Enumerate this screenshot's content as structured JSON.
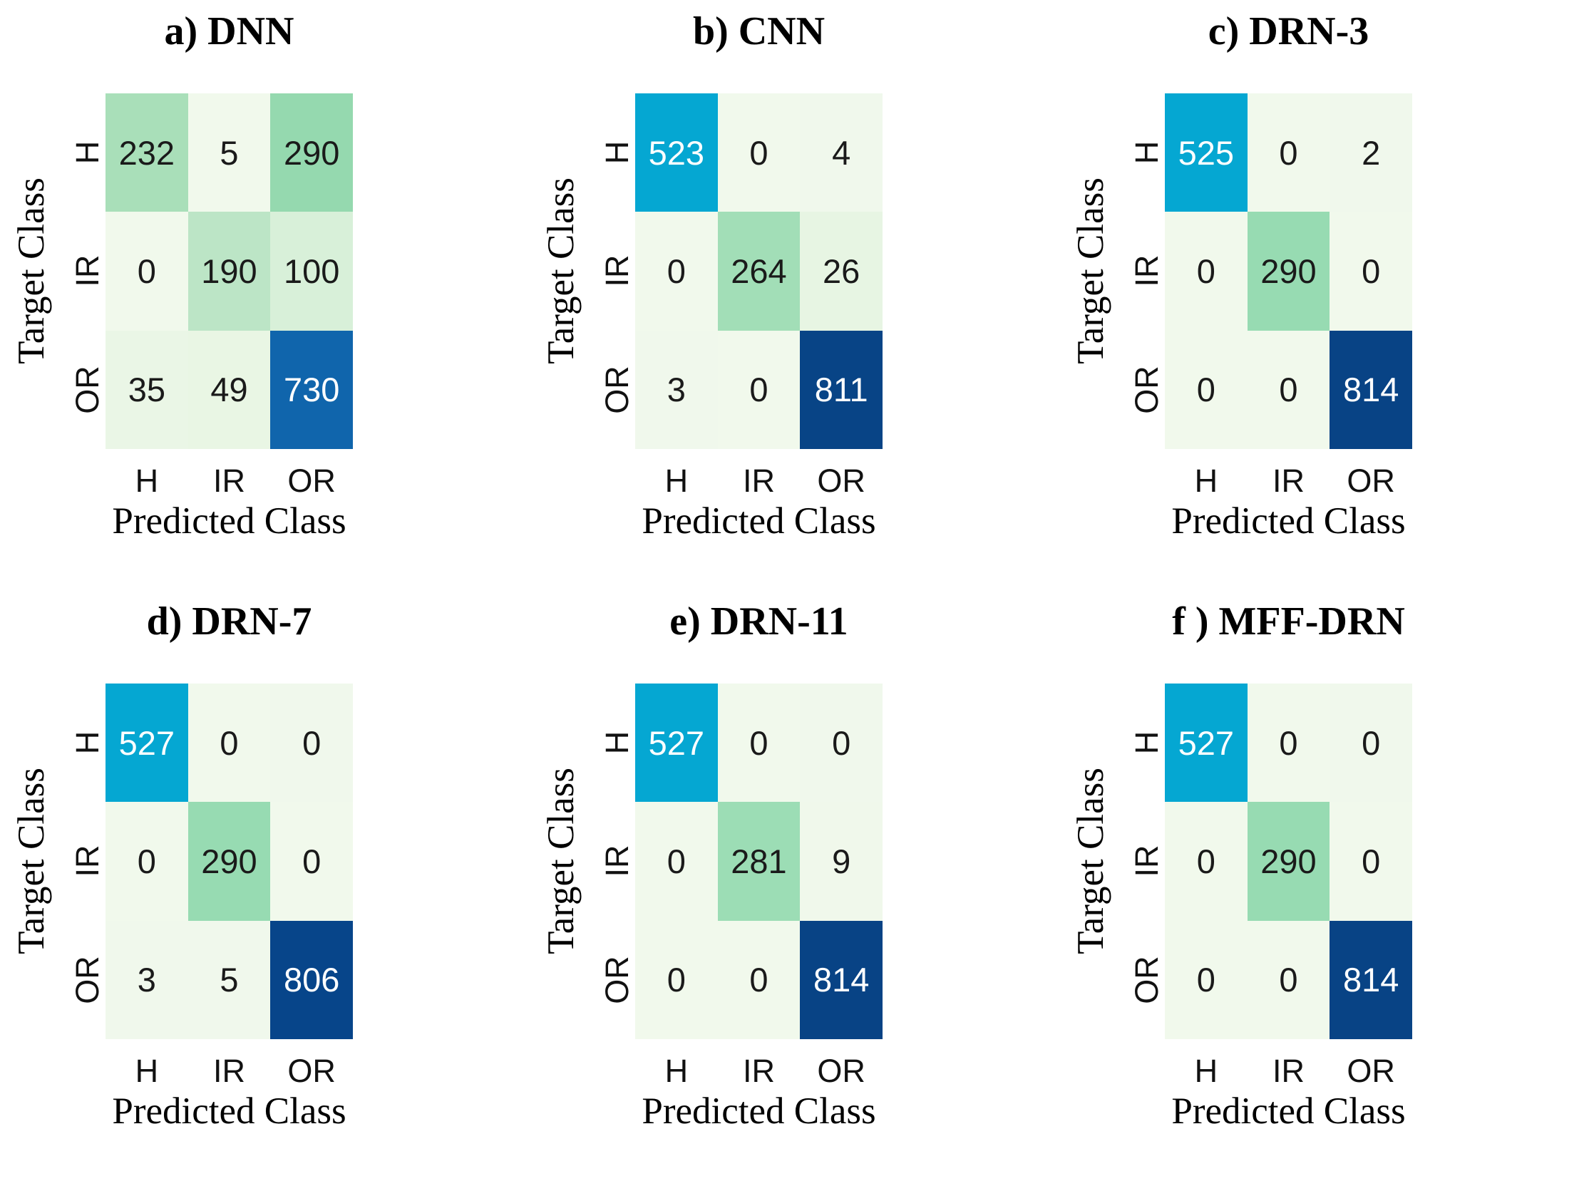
{
  "figure": {
    "kind": "confusion-matrix-comparison",
    "background": "#ffffff",
    "panels_per_row": 3,
    "colormap": {
      "style": "GnBu-like, shared scale 0-814",
      "low": "#f1f9ec",
      "green_mid": "#97dbb2",
      "cyan_high": "#05a7d2",
      "blue_max": "#084385"
    }
  },
  "chart_data": [
    {
      "type": "heatmap",
      "title": "a) DNN",
      "xlabel": "Predicted Class",
      "ylabel": "Target Class",
      "x_categories": [
        "H",
        "IR",
        "OR"
      ],
      "y_categories": [
        "H",
        "IR",
        "OR"
      ],
      "values": [
        [
          232,
          5,
          290
        ],
        [
          0,
          190,
          100
        ],
        [
          35,
          49,
          730
        ]
      ],
      "cell_colors": [
        [
          "#a9dfb9",
          "#f1f9ec",
          "#95d9af"
        ],
        [
          "#f1f9ec",
          "#bce5c6",
          "#d8f0d9"
        ],
        [
          "#eaf6e6",
          "#e9f6e4",
          "#1065ac"
        ]
      ]
    },
    {
      "type": "heatmap",
      "title": "b) CNN",
      "xlabel": "Predicted Class",
      "ylabel": "Target Class",
      "x_categories": [
        "H",
        "IR",
        "OR"
      ],
      "y_categories": [
        "H",
        "IR",
        "OR"
      ],
      "values": [
        [
          523,
          0,
          4
        ],
        [
          0,
          264,
          26
        ],
        [
          3,
          0,
          811
        ]
      ],
      "cell_colors": [
        [
          "#05a7d2",
          "#f1f9ec",
          "#f0f8ec"
        ],
        [
          "#f1f9ec",
          "#a2deb7",
          "#e7f5e3"
        ],
        [
          "#f0f8ec",
          "#f1f9ec",
          "#084486"
        ]
      ]
    },
    {
      "type": "heatmap",
      "title": "c) DRN-3",
      "xlabel": "Predicted Class",
      "ylabel": "Target Class",
      "x_categories": [
        "H",
        "IR",
        "OR"
      ],
      "y_categories": [
        "H",
        "IR",
        "OR"
      ],
      "values": [
        [
          525,
          0,
          2
        ],
        [
          0,
          290,
          0
        ],
        [
          0,
          0,
          814
        ]
      ],
      "cell_colors": [
        [
          "#05a7d2",
          "#f1f9ec",
          "#f0f8ec"
        ],
        [
          "#f1f9ec",
          "#97dbb2",
          "#f1f9ec"
        ],
        [
          "#f1f9ec",
          "#f1f9ec",
          "#084385"
        ]
      ]
    },
    {
      "type": "heatmap",
      "title": "d) DRN-7",
      "xlabel": "Predicted Class",
      "ylabel": "Target Class",
      "x_categories": [
        "H",
        "IR",
        "OR"
      ],
      "y_categories": [
        "H",
        "IR",
        "OR"
      ],
      "values": [
        [
          527,
          0,
          0
        ],
        [
          0,
          290,
          0
        ],
        [
          3,
          5,
          806
        ]
      ],
      "cell_colors": [
        [
          "#05a7d2",
          "#f1f9ec",
          "#f0f8ec"
        ],
        [
          "#f1f9ec",
          "#97dbb2",
          "#f1f9ec"
        ],
        [
          "#f0f8ec",
          "#f0f8ec",
          "#07458a"
        ]
      ]
    },
    {
      "type": "heatmap",
      "title": "e) DRN-11",
      "xlabel": "Predicted Class",
      "ylabel": "Target Class",
      "x_categories": [
        "H",
        "IR",
        "OR"
      ],
      "y_categories": [
        "H",
        "IR",
        "OR"
      ],
      "values": [
        [
          527,
          0,
          0
        ],
        [
          0,
          281,
          9
        ],
        [
          0,
          0,
          814
        ]
      ],
      "cell_colors": [
        [
          "#05a7d2",
          "#f1f9ec",
          "#f0f8ec"
        ],
        [
          "#f1f9ec",
          "#9cddb5",
          "#f0f8eb"
        ],
        [
          "#f1f9ec",
          "#f1f9ec",
          "#084385"
        ]
      ]
    },
    {
      "type": "heatmap",
      "title": "f ) MFF-DRN",
      "xlabel": "Predicted Class",
      "ylabel": "Target Class",
      "x_categories": [
        "H",
        "IR",
        "OR"
      ],
      "y_categories": [
        "H",
        "IR",
        "OR"
      ],
      "values": [
        [
          527,
          0,
          0
        ],
        [
          0,
          290,
          0
        ],
        [
          0,
          0,
          814
        ]
      ],
      "cell_colors": [
        [
          "#05a7d2",
          "#f1f9ec",
          "#f0f8ec"
        ],
        [
          "#f1f9ec",
          "#97dbb2",
          "#f1f9ec"
        ],
        [
          "#f1f9ec",
          "#f1f9ec",
          "#084385"
        ]
      ]
    }
  ]
}
